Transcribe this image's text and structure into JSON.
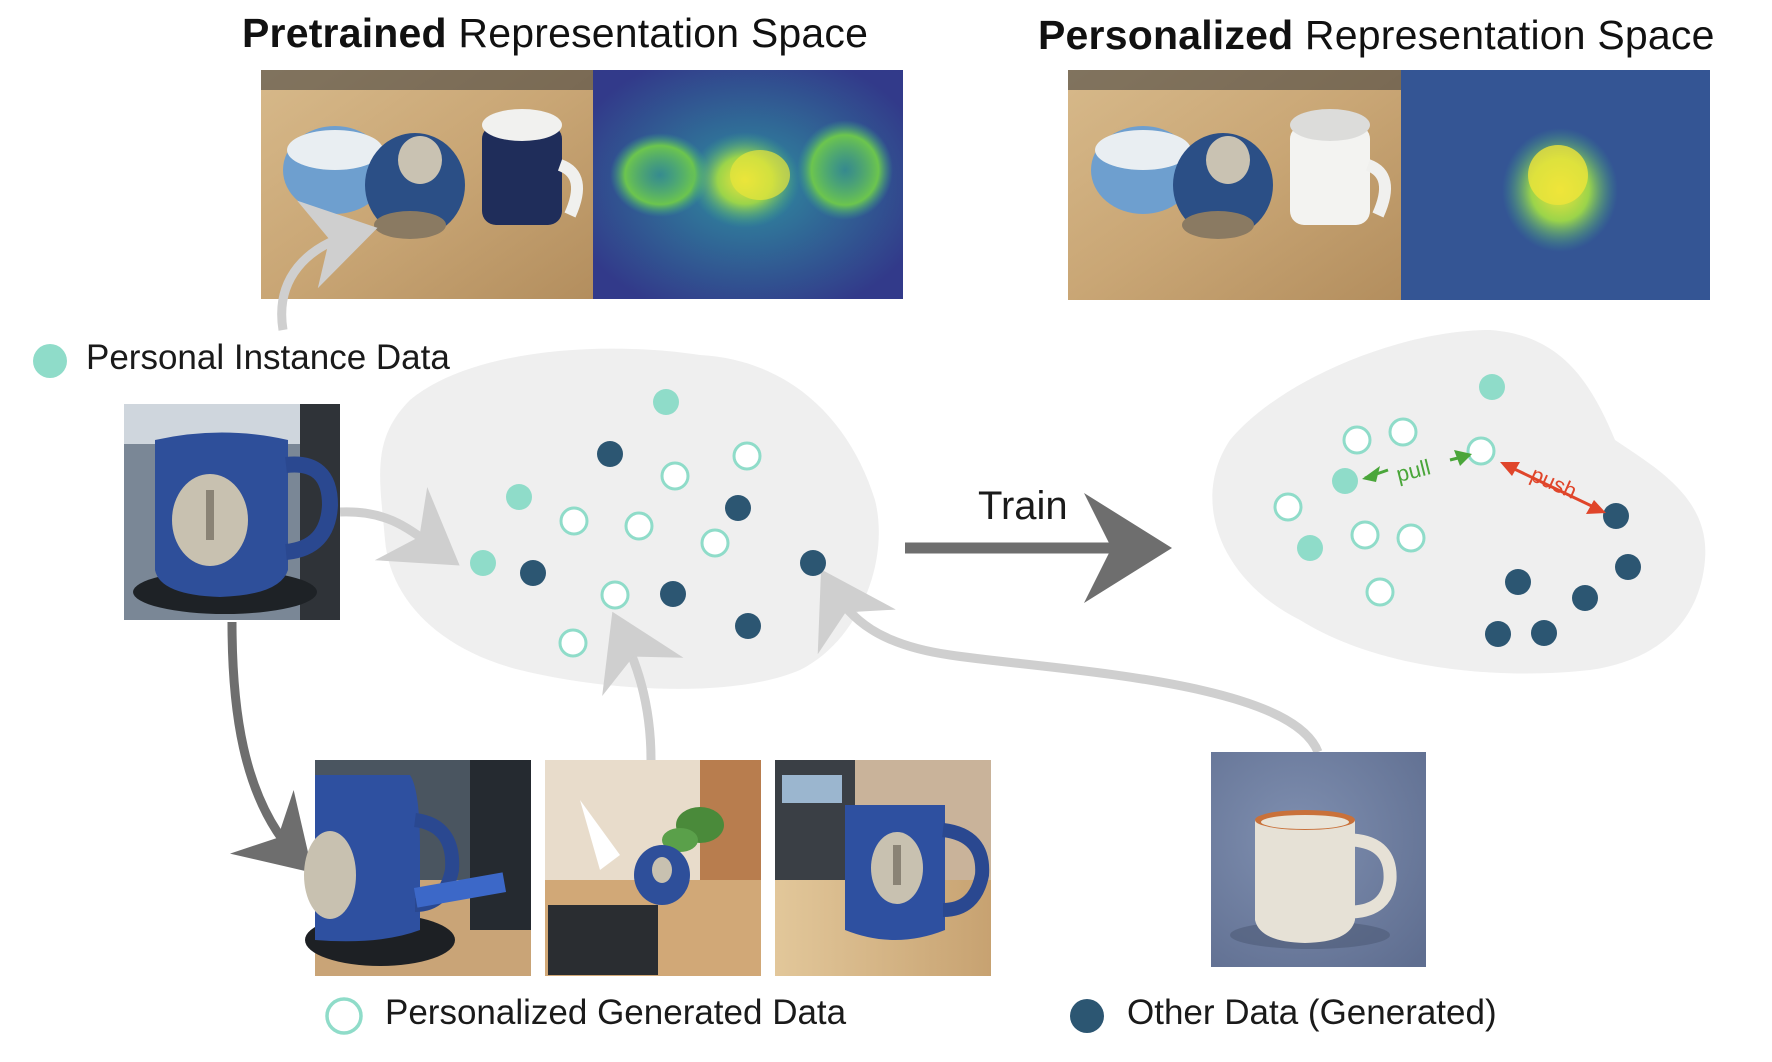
{
  "titles": {
    "pretrained_bold": "Pretrained",
    "pretrained_rest": "Representation Space",
    "personalized_bold": "Personalized",
    "personalized_rest": "Representation Space"
  },
  "legend": {
    "personal_instance": "Personal Instance Data",
    "personalized_generated": "Personalized Generated Data",
    "other_data": "Other Data (Generated)"
  },
  "arrows": {
    "train": "Train",
    "pull": "pull",
    "push": "push"
  },
  "colors": {
    "personal": "#8fdcc9",
    "generated_ring": "#8fdcc9",
    "other": "#2c5672",
    "pull": "#4aa63a",
    "push": "#e0452a",
    "blob": "#efefef",
    "arrow_light": "#cfcfcf",
    "arrow_dark": "#6e6e6e"
  }
}
